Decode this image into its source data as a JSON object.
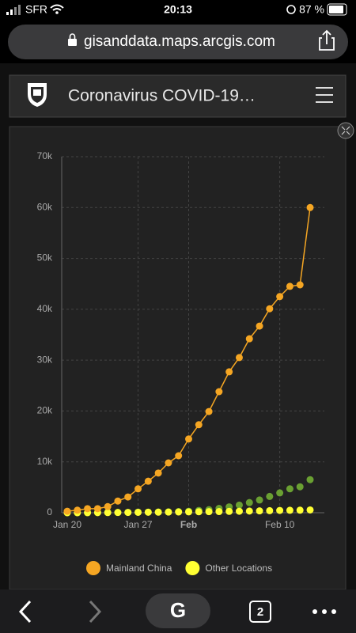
{
  "status_bar": {
    "carrier": "SFR",
    "time": "20:13",
    "battery": "87 %"
  },
  "browser": {
    "url": "gisanddata.maps.arcgis.com",
    "tab_count": "2"
  },
  "header": {
    "title": "Coronavirus COVID-19…"
  },
  "chart_data": {
    "type": "line",
    "categories": [
      "Jan 20",
      null,
      null,
      null,
      null,
      null,
      null,
      "Jan 27",
      null,
      null,
      null,
      null,
      "Feb",
      null,
      null,
      null,
      null,
      null,
      null,
      null,
      null,
      "Feb 10",
      null,
      null,
      null
    ],
    "series": [
      {
        "name": "Mainland China",
        "color": "#f5a623",
        "show_line": true,
        "values": [
          300,
          500,
          800,
          800,
          1200,
          2300,
          3100,
          4700,
          6200,
          7800,
          9800,
          11200,
          14500,
          17300,
          19900,
          23800,
          27700,
          30500,
          34200,
          36700,
          40100,
          42500,
          44500,
          44800,
          60000
        ]
      },
      {
        "color": "#6aa032",
        "show_line": false,
        "values": [
          0,
          0,
          0,
          30,
          40,
          50,
          60,
          100,
          120,
          140,
          170,
          230,
          300,
          450,
          600,
          850,
          1150,
          1500,
          2000,
          2500,
          3200,
          3900,
          4700,
          5100,
          6500
        ]
      },
      {
        "name": "Other Locations",
        "color": "#ffff33",
        "show_line": false,
        "values": [
          0,
          0,
          10,
          20,
          30,
          50,
          60,
          80,
          100,
          110,
          130,
          150,
          170,
          190,
          210,
          230,
          270,
          300,
          330,
          360,
          400,
          450,
          480,
          500,
          550
        ]
      }
    ],
    "ylim": [
      0,
      70000
    ],
    "yticks": [
      0,
      {
        "value": 10000,
        "label": "10k"
      },
      {
        "value": 20000,
        "label": "20k"
      },
      {
        "value": 30000,
        "label": "30k"
      },
      {
        "value": 40000,
        "label": "40k"
      },
      {
        "value": 50000,
        "label": "50k"
      },
      {
        "value": 60000,
        "label": "60k"
      },
      {
        "value": 70000,
        "label": "70k"
      }
    ],
    "grid": true
  }
}
